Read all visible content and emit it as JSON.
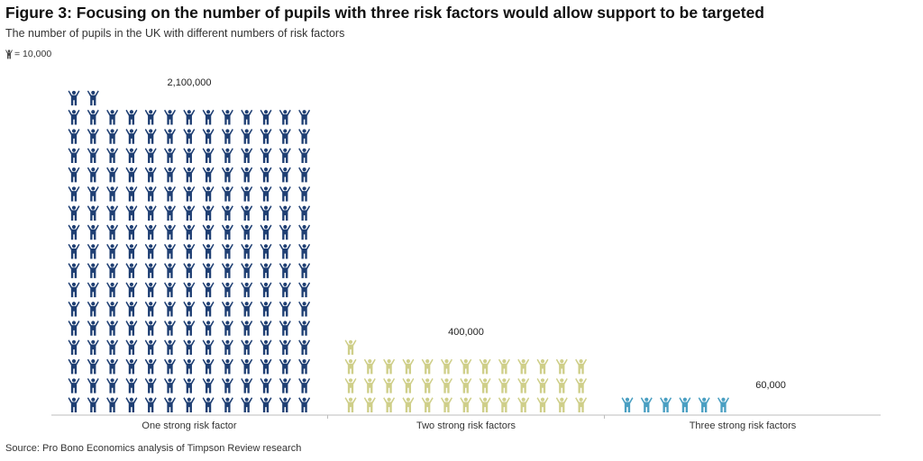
{
  "title": "Figure 3: Focusing on the number of pupils with three risk factors would allow support to be targeted",
  "subtitle": "The number of pupils in the UK with different numbers of risk factors",
  "key": {
    "label": "= 10,000",
    "icon": "person-icon"
  },
  "source": "Source: Pro Bono Economics analysis of Timpson Review research",
  "chart_data": {
    "type": "bar",
    "subtype": "pictogram",
    "unit_per_icon": 10000,
    "categories": [
      "One strong risk factor",
      "Two strong risk factors",
      "Three strong risk factors"
    ],
    "values": [
      2100000,
      400000,
      60000
    ],
    "value_labels": [
      "2,100,000",
      "400,000",
      "60,000"
    ],
    "colors": [
      "#1f3f73",
      "#cfcf8a",
      "#4a9fc2"
    ],
    "title": "Figure 3: Focusing on the number of pupils with three risk factors would allow support to be targeted",
    "xlabel": "",
    "ylabel": "",
    "grid": false,
    "legend": "none"
  }
}
